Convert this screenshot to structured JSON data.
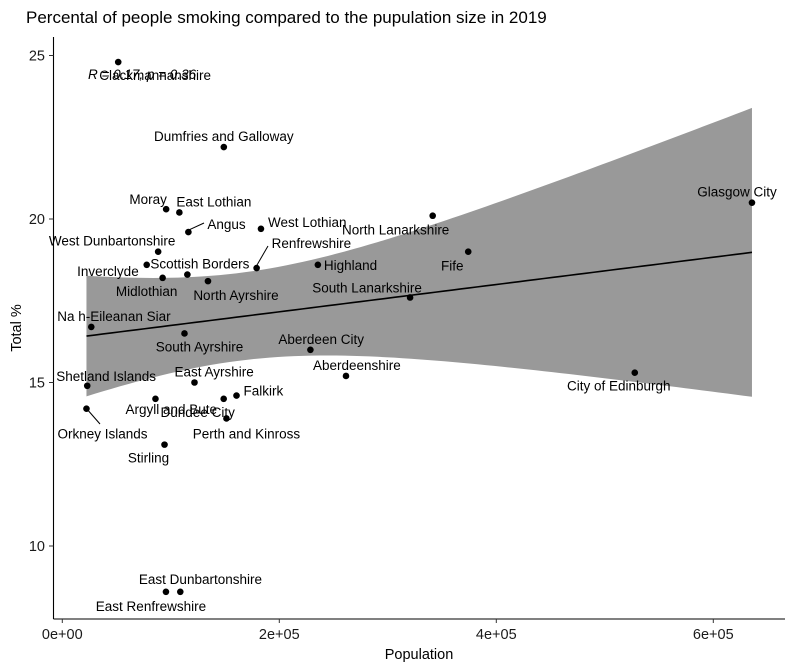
{
  "chart_data": {
    "type": "scatter",
    "title": "Percental of people smoking compared to the pupulation size in 2019",
    "xlabel": "Population",
    "ylabel": "Total %",
    "xlim": [
      -18000,
      662000
    ],
    "ylim": [
      7.8,
      26.1
    ],
    "x_ticks": [
      {
        "value": 0,
        "label": "0e+00"
      },
      {
        "value": 200000,
        "label": "2e+05"
      },
      {
        "value": 400000,
        "label": "4e+05"
      },
      {
        "value": 600000,
        "label": "6e+05"
      }
    ],
    "y_ticks": [
      {
        "value": 10,
        "label": "10"
      },
      {
        "value": 15,
        "label": "15"
      },
      {
        "value": 20,
        "label": "20"
      },
      {
        "value": 25,
        "label": "25"
      }
    ],
    "grid": false,
    "legend": "none",
    "annotation": "R = 0.17, p = 0.36",
    "regression": {
      "method": "lm",
      "intercept": 16.327,
      "slope": 4.174e-06,
      "x_mean": 164000,
      "ci_var_at_mean": 1.8,
      "ci_var_coef_per_k2": 7.96e-05,
      "x_range": [
        22270,
        635640
      ]
    },
    "points": [
      {
        "name": "Clackmannanshire",
        "x": 51540,
        "y": 24.8
      },
      {
        "name": "Dumfries and Galloway",
        "x": 148860,
        "y": 22.2
      },
      {
        "name": "Moray",
        "x": 95710,
        "y": 20.3
      },
      {
        "name": "East Lothian",
        "x": 107900,
        "y": 20.2
      },
      {
        "name": "Angus",
        "x": 116200,
        "y": 19.6
      },
      {
        "name": "West Lothian",
        "x": 183100,
        "y": 19.7
      },
      {
        "name": "West Dunbartonshire",
        "x": 88340,
        "y": 19.0
      },
      {
        "name": "Inverclyde",
        "x": 77800,
        "y": 18.6
      },
      {
        "name": "Renfrewshire",
        "x": 179100,
        "y": 18.5
      },
      {
        "name": "Midlothian",
        "x": 92460,
        "y": 18.2
      },
      {
        "name": "Scottish Borders",
        "x": 115270,
        "y": 18.3
      },
      {
        "name": "North Ayrshire",
        "x": 134250,
        "y": 18.1
      },
      {
        "name": "Highland",
        "x": 235540,
        "y": 18.6
      },
      {
        "name": "North Lanarkshire",
        "x": 341370,
        "y": 20.1
      },
      {
        "name": "Fife",
        "x": 374130,
        "y": 19.0
      },
      {
        "name": "South Lanarkshire",
        "x": 320530,
        "y": 17.6
      },
      {
        "name": "Glasgow City",
        "x": 635640,
        "y": 20.5
      },
      {
        "name": "Na h-Eileanan Siar",
        "x": 26720,
        "y": 16.7
      },
      {
        "name": "South Ayrshire",
        "x": 112610,
        "y": 16.5
      },
      {
        "name": "Aberdeen City",
        "x": 228670,
        "y": 16.0
      },
      {
        "name": "Aberdeenshire",
        "x": 261470,
        "y": 15.2
      },
      {
        "name": "City of Edinburgh",
        "x": 527620,
        "y": 15.3
      },
      {
        "name": "Shetland Islands",
        "x": 22990,
        "y": 14.9
      },
      {
        "name": "East Ayrshire",
        "x": 121840,
        "y": 15.0
      },
      {
        "name": "Argyll and Bute",
        "x": 85870,
        "y": 14.5
      },
      {
        "name": "Orkney Islands",
        "x": 22270,
        "y": 14.2
      },
      {
        "name": "Dundee City",
        "x": 148750,
        "y": 14.5
      },
      {
        "name": "Falkirk",
        "x": 160560,
        "y": 14.6
      },
      {
        "name": "Perth and Kinross",
        "x": 151290,
        "y": 13.9
      },
      {
        "name": "Stirling",
        "x": 94210,
        "y": 13.1
      },
      {
        "name": "East Dunbartonshire",
        "x": 108750,
        "y": 8.6
      },
      {
        "name": "East Renfrewshire",
        "x": 95530,
        "y": 8.6
      }
    ]
  }
}
